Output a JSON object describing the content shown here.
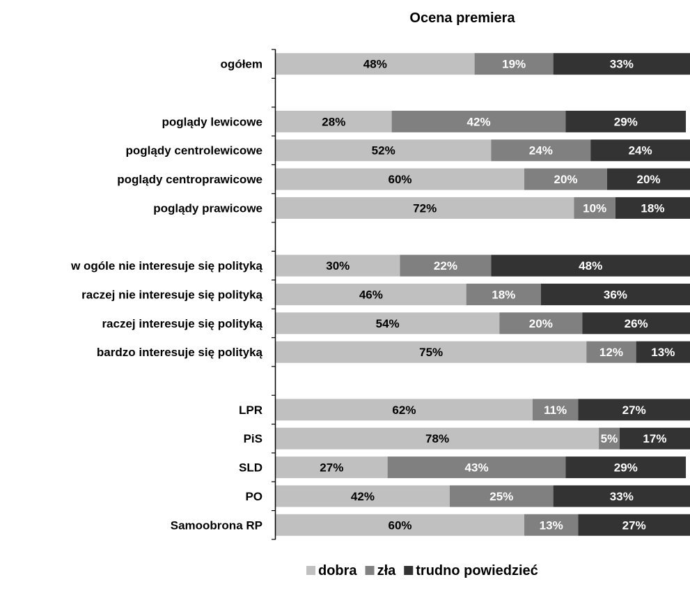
{
  "chart_data": {
    "type": "bar",
    "stacked": "percent",
    "orientation": "horizontal",
    "title": "Ocena premiera",
    "categories": [
      "ogółem",
      "",
      "poglądy lewicowe",
      "poglądy centrolewicowe",
      "poglądy centroprawicowe",
      "poglądy prawicowe",
      "",
      "w ogóle nie interesuje się polityką",
      "raczej nie interesuje się polityką",
      "raczej interesuje się polityką",
      "bardzo interesuje się polityką",
      "",
      "LPR",
      "PiS",
      "SLD",
      "PO",
      "Samoobrona RP"
    ],
    "series": [
      {
        "name": "dobra",
        "color": "#c0c0c0",
        "label_color": "#000000",
        "values": [
          48,
          null,
          28,
          52,
          60,
          72,
          null,
          30,
          46,
          54,
          75,
          null,
          62,
          78,
          27,
          42,
          60
        ]
      },
      {
        "name": "zła",
        "color": "#808080",
        "label_color": "#ffffff",
        "values": [
          19,
          null,
          42,
          24,
          20,
          10,
          null,
          22,
          18,
          20,
          12,
          null,
          11,
          5,
          43,
          25,
          13
        ]
      },
      {
        "name": "trudno powiedzieć",
        "color": "#333333",
        "label_color": "#ffffff",
        "values": [
          33,
          null,
          29,
          24,
          20,
          18,
          null,
          48,
          36,
          26,
          13,
          null,
          27,
          17,
          29,
          33,
          27
        ]
      }
    ],
    "value_suffix": "%",
    "legend_position": "bottom",
    "grid": false
  }
}
